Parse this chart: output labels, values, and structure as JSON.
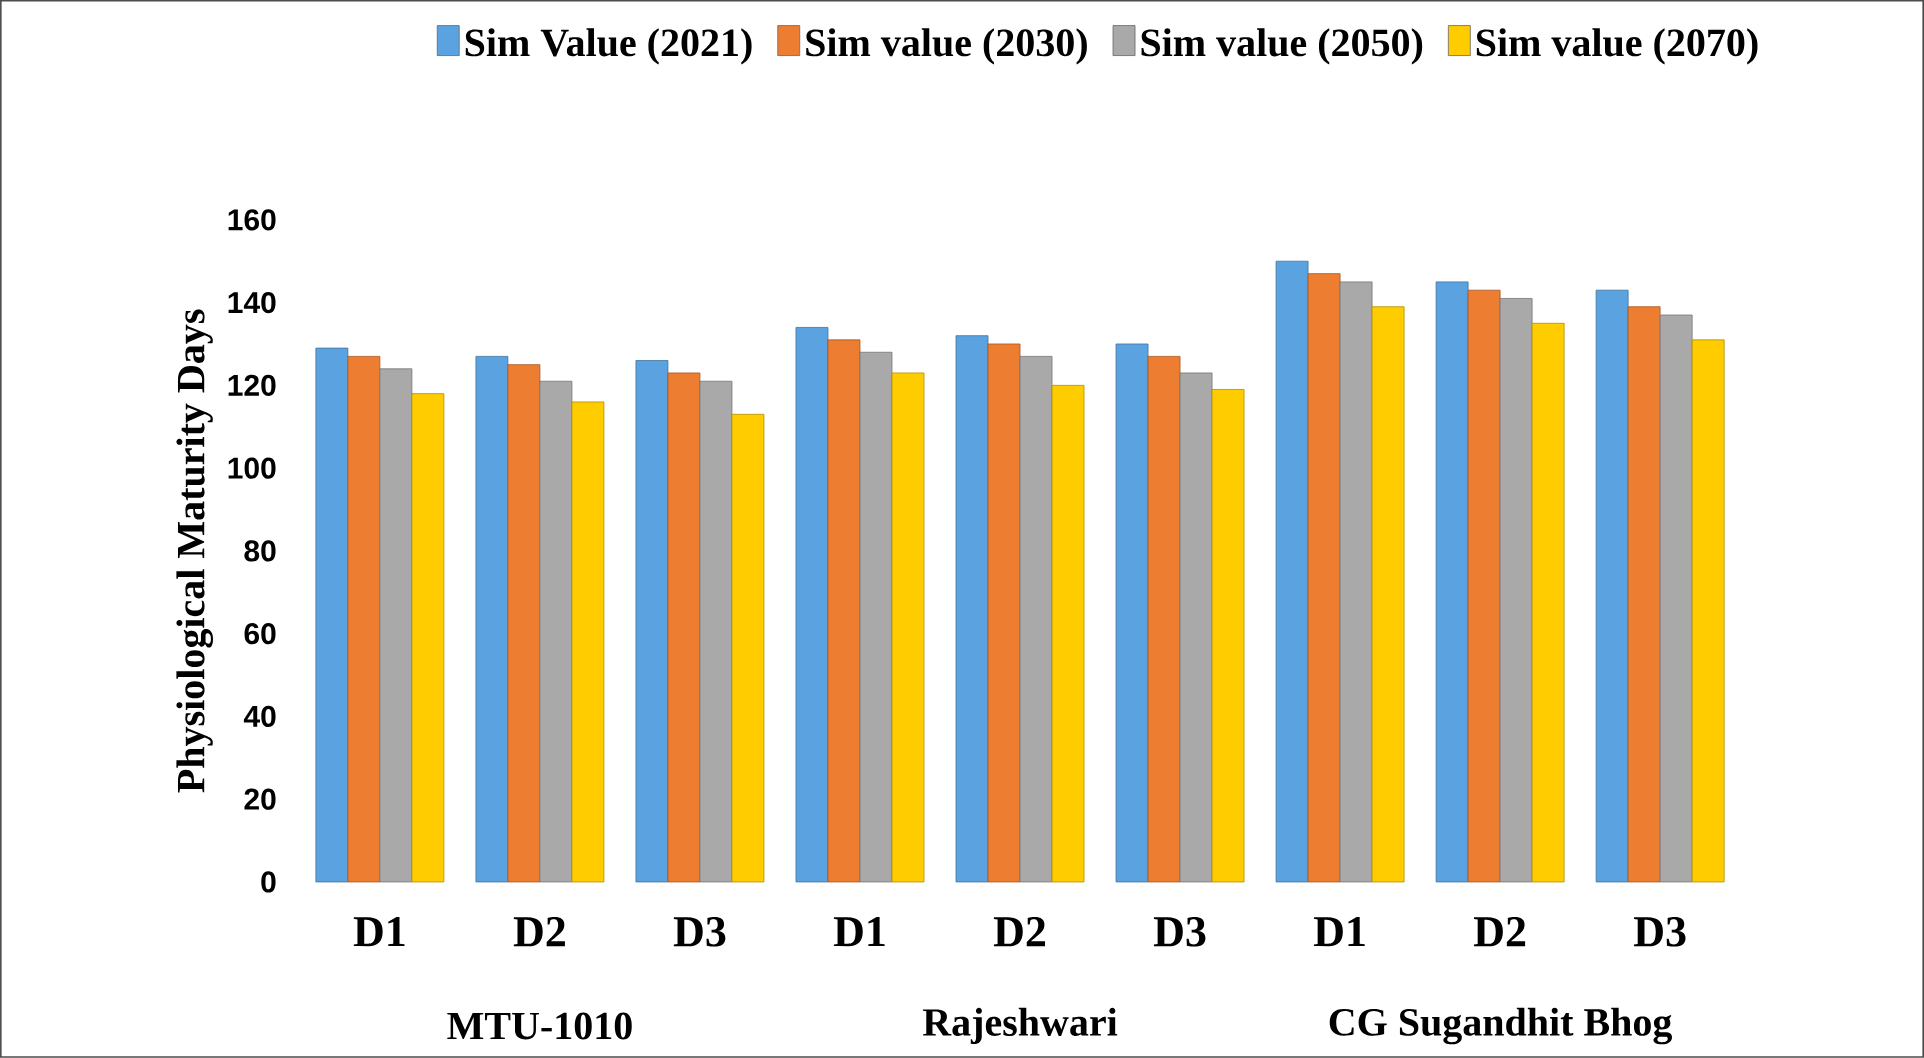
{
  "chart_data": {
    "type": "bar",
    "ylabel": "Physiological Maturity Days",
    "categories": [
      "D1",
      "D2",
      "D3",
      "D1",
      "D2",
      "D3",
      "D1",
      "D2",
      "D3"
    ],
    "series": [
      {
        "name": "Sim Value (2021)",
        "color": "#5ba3e0",
        "values": [
          129,
          127,
          126,
          134,
          132,
          130,
          150,
          145,
          143
        ]
      },
      {
        "name": "Sim value (2030)",
        "color": "#ed7d31",
        "values": [
          127,
          125,
          123,
          131,
          130,
          127,
          147,
          143,
          139
        ]
      },
      {
        "name": "Sim value (2050)",
        "color": "#a9a9a9",
        "values": [
          124,
          121,
          121,
          128,
          127,
          123,
          145,
          141,
          137
        ]
      },
      {
        "name": "Sim value (2070)",
        "color": "#ffcc00",
        "values": [
          118,
          116,
          113,
          123,
          120,
          119,
          139,
          135,
          131
        ]
      }
    ],
    "annotations": [
      "MTU-1010",
      "Rajeshwari",
      "CG Sugandhit Bhog"
    ],
    "ylim": [
      0,
      160
    ],
    "yticks": [
      0,
      20,
      40,
      60,
      80,
      100,
      120,
      140,
      160
    ],
    "grid": false,
    "legend": "top"
  }
}
